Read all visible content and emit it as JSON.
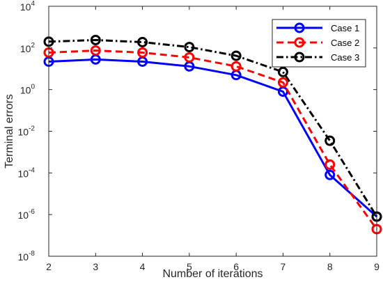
{
  "chart_data": {
    "type": "line",
    "yscale": "log",
    "xlabel": "Number of iterations",
    "ylabel": "Terminal errors",
    "xlim": [
      2,
      9
    ],
    "ylim": [
      1e-08,
      10000.0
    ],
    "x": [
      2,
      3,
      4,
      5,
      6,
      7,
      8,
      9
    ],
    "xticks": [
      "2",
      "3",
      "4",
      "5",
      "6",
      "7",
      "8",
      "9"
    ],
    "yticks": [
      {
        "base": "10",
        "exp": "4",
        "value": 10000.0
      },
      {
        "base": "10",
        "exp": "2",
        "value": 100.0
      },
      {
        "base": "10",
        "exp": "0",
        "value": 1
      },
      {
        "base": "10",
        "exp": "-2",
        "value": 0.01
      },
      {
        "base": "10",
        "exp": "-4",
        "value": 0.0001
      },
      {
        "base": "10",
        "exp": "-6",
        "value": 1e-06
      },
      {
        "base": "10",
        "exp": "-8",
        "value": 1e-08
      }
    ],
    "grid": false,
    "legend_position": "top-right",
    "series": [
      {
        "name": "Case 1",
        "color": "#0000ff",
        "line_style": "solid",
        "marker": "circle",
        "values": [
          22,
          28,
          22,
          13,
          5,
          0.8,
          8e-05,
          8e-07
        ]
      },
      {
        "name": "Case 2",
        "color": "#ff0000",
        "line_style": "dashed",
        "marker": "circle",
        "values": [
          60,
          75,
          60,
          35,
          13,
          2.2,
          0.00025,
          2e-07
        ]
      },
      {
        "name": "Case 3",
        "color": "#000000",
        "line_style": "dashdot",
        "marker": "circle",
        "values": [
          200,
          240,
          190,
          110,
          42,
          7,
          0.0035,
          8e-07
        ]
      }
    ]
  }
}
